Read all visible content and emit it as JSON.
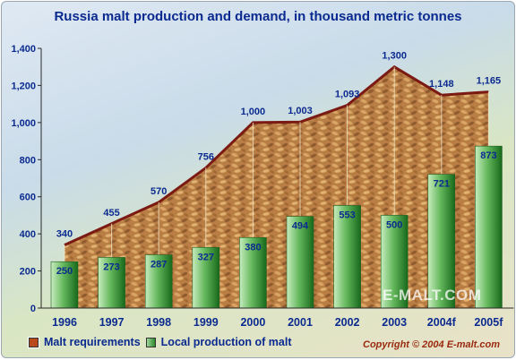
{
  "chart_data": {
    "type": "bar",
    "title": "Russia malt production and demand, in thousand metric tonnes",
    "categories": [
      "1996",
      "1997",
      "1998",
      "1999",
      "2000",
      "2001",
      "2002",
      "2003",
      "2004f",
      "2005f"
    ],
    "series": [
      {
        "name": "Malt requirements",
        "type": "area",
        "values": [
          340,
          455,
          570,
          756,
          1000,
          1003,
          1093,
          1300,
          1148,
          1165
        ]
      },
      {
        "name": "Local production of malt",
        "type": "bar",
        "values": [
          250,
          273,
          287,
          327,
          380,
          494,
          553,
          500,
          721,
          873
        ]
      }
    ],
    "yticks": [
      "0",
      "200",
      "400",
      "600",
      "800",
      "1,000",
      "1,200",
      "1,400"
    ],
    "ylim": [
      0,
      1400
    ],
    "requirement_labels": [
      "340",
      "455",
      "570",
      "756",
      "1,000",
      "1,003",
      "1,093",
      "1,300",
      "1,148",
      "1,165"
    ],
    "production_labels": [
      "250",
      "273",
      "287",
      "327",
      "380",
      "494",
      "553",
      "500",
      "721",
      "873"
    ],
    "grid": false,
    "legend_position": "bottom-left"
  },
  "legend": {
    "requirements": "Malt requirements",
    "production": "Local production of malt"
  },
  "copyright": "Copyright © 2004  E-malt.com",
  "watermark": "E-MALT.COM",
  "colors": {
    "area_line": "#7a1a12",
    "bar_light": "#b9e3b0",
    "bar_dark": "#1f7a24",
    "text": "#0b2a8f"
  }
}
